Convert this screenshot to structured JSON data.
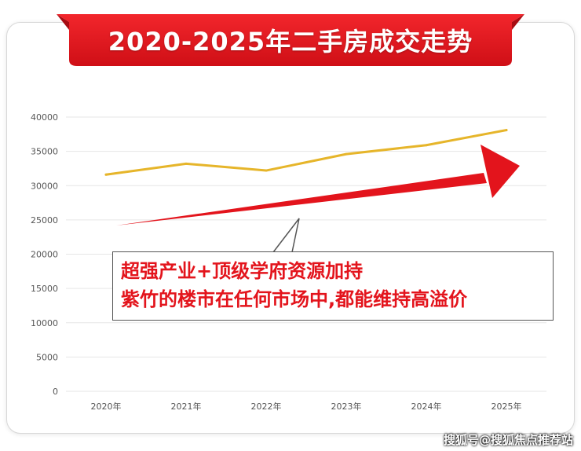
{
  "title": "2020-2025年二手房成交走势",
  "callout": {
    "line1": "超强产业+顶级学府资源加持",
    "line2": "紫竹的楼市在任何市场中,都能维持高溢价"
  },
  "watermark": "搜狐号@搜狐焦点推荐站",
  "colors": {
    "banner": "#e8161d",
    "line": "#e6b52a",
    "arrow": "#e3141c",
    "grid": "#e6e6e6",
    "axis_text": "#555555"
  },
  "chart_data": {
    "type": "line",
    "categories": [
      "2020年",
      "2021年",
      "2022年",
      "2023年",
      "2024年",
      "2025年"
    ],
    "series": [
      {
        "values": [
          31600,
          33200,
          32200,
          34600,
          35900,
          38100
        ]
      }
    ],
    "yticks": [
      0,
      5000,
      10000,
      15000,
      20000,
      25000,
      30000,
      35000,
      40000
    ],
    "ylim": [
      0,
      40000
    ],
    "grid": true,
    "annotation_arrow": "upward trend arrow"
  }
}
